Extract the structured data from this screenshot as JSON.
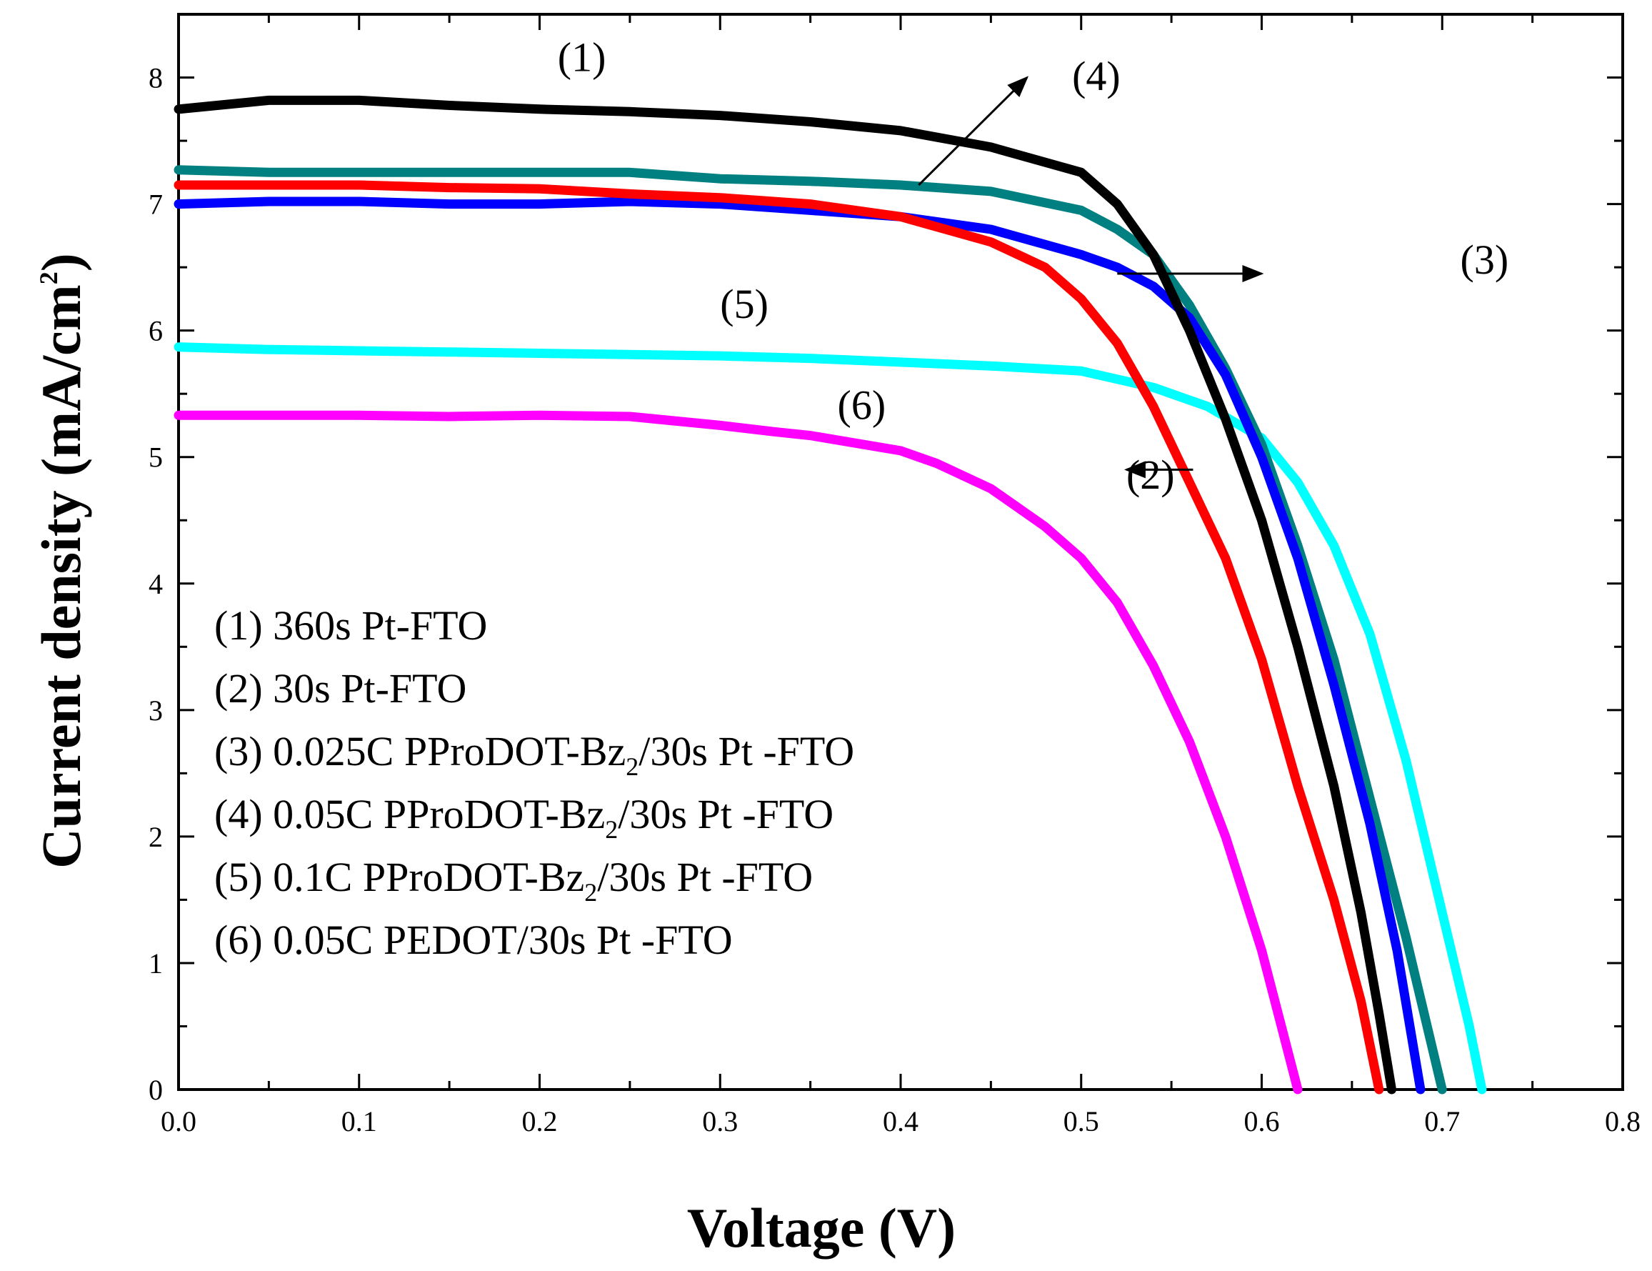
{
  "chart_data": {
    "type": "line",
    "xlabel": "Voltage (V)",
    "ylabel": {
      "main": "Current density (mA/cm",
      "sup": "2",
      "close": ")"
    },
    "xlim": [
      0.0,
      0.8
    ],
    "ylim": [
      0,
      8.5
    ],
    "x_ticks": [
      "0.0",
      "0.1",
      "0.2",
      "0.3",
      "0.4",
      "0.5",
      "0.6",
      "0.7",
      "0.8"
    ],
    "y_ticks": [
      "0",
      "1",
      "2",
      "3",
      "4",
      "5",
      "6",
      "7",
      "8"
    ],
    "grid": false,
    "legend_position": "bottom-left",
    "series": [
      {
        "id": "s1",
        "color": "#000000",
        "legend": {
          "pre": "(1) 360s Pt-FTO"
        },
        "points": [
          [
            0.0,
            7.75
          ],
          [
            0.05,
            7.82
          ],
          [
            0.1,
            7.82
          ],
          [
            0.15,
            7.78
          ],
          [
            0.2,
            7.75
          ],
          [
            0.25,
            7.73
          ],
          [
            0.3,
            7.7
          ],
          [
            0.35,
            7.65
          ],
          [
            0.4,
            7.58
          ],
          [
            0.45,
            7.45
          ],
          [
            0.5,
            7.25
          ],
          [
            0.52,
            7.0
          ],
          [
            0.54,
            6.6
          ],
          [
            0.56,
            6.0
          ],
          [
            0.58,
            5.3
          ],
          [
            0.6,
            4.5
          ],
          [
            0.62,
            3.5
          ],
          [
            0.64,
            2.4
          ],
          [
            0.655,
            1.4
          ],
          [
            0.665,
            0.6
          ],
          [
            0.672,
            0.0
          ]
        ]
      },
      {
        "id": "s2",
        "color": "#ff0000",
        "legend": {
          "pre": "(2) 30s Pt-FTO"
        },
        "points": [
          [
            0.0,
            7.15
          ],
          [
            0.05,
            7.15
          ],
          [
            0.1,
            7.15
          ],
          [
            0.15,
            7.13
          ],
          [
            0.2,
            7.12
          ],
          [
            0.25,
            7.08
          ],
          [
            0.3,
            7.05
          ],
          [
            0.35,
            7.0
          ],
          [
            0.4,
            6.9
          ],
          [
            0.45,
            6.7
          ],
          [
            0.48,
            6.5
          ],
          [
            0.5,
            6.25
          ],
          [
            0.52,
            5.9
          ],
          [
            0.54,
            5.4
          ],
          [
            0.56,
            4.8
          ],
          [
            0.58,
            4.2
          ],
          [
            0.6,
            3.4
          ],
          [
            0.62,
            2.4
          ],
          [
            0.64,
            1.5
          ],
          [
            0.655,
            0.7
          ],
          [
            0.665,
            0.0
          ]
        ]
      },
      {
        "id": "s3",
        "color": "#0000ff",
        "legend": {
          "pre": "(3) 0.025C PProDOT-Bz",
          "sub": "2",
          "post": "/30s Pt -FTO"
        },
        "points": [
          [
            0.0,
            7.0
          ],
          [
            0.05,
            7.02
          ],
          [
            0.1,
            7.02
          ],
          [
            0.15,
            7.0
          ],
          [
            0.2,
            7.0
          ],
          [
            0.25,
            7.02
          ],
          [
            0.3,
            7.0
          ],
          [
            0.35,
            6.95
          ],
          [
            0.4,
            6.9
          ],
          [
            0.45,
            6.8
          ],
          [
            0.5,
            6.6
          ],
          [
            0.52,
            6.5
          ],
          [
            0.54,
            6.35
          ],
          [
            0.56,
            6.1
          ],
          [
            0.58,
            5.65
          ],
          [
            0.6,
            5.0
          ],
          [
            0.62,
            4.2
          ],
          [
            0.64,
            3.2
          ],
          [
            0.66,
            2.1
          ],
          [
            0.675,
            1.1
          ],
          [
            0.688,
            0.0
          ]
        ]
      },
      {
        "id": "s4",
        "color": "#008080",
        "legend": {
          "pre": "(4) 0.05C PProDOT-Bz",
          "sub": "2",
          "post": "/30s Pt -FTO"
        },
        "points": [
          [
            0.0,
            7.27
          ],
          [
            0.05,
            7.25
          ],
          [
            0.1,
            7.25
          ],
          [
            0.15,
            7.25
          ],
          [
            0.2,
            7.25
          ],
          [
            0.25,
            7.25
          ],
          [
            0.3,
            7.2
          ],
          [
            0.35,
            7.18
          ],
          [
            0.4,
            7.15
          ],
          [
            0.45,
            7.1
          ],
          [
            0.5,
            6.95
          ],
          [
            0.52,
            6.8
          ],
          [
            0.54,
            6.6
          ],
          [
            0.56,
            6.2
          ],
          [
            0.58,
            5.7
          ],
          [
            0.6,
            5.1
          ],
          [
            0.62,
            4.3
          ],
          [
            0.64,
            3.4
          ],
          [
            0.66,
            2.3
          ],
          [
            0.68,
            1.2
          ],
          [
            0.7,
            0.0
          ]
        ]
      },
      {
        "id": "s5",
        "color": "#00ffff",
        "legend": {
          "pre": "(5) 0.1C PProDOT-Bz",
          "sub": "2",
          "post": "/30s Pt -FTO"
        },
        "points": [
          [
            0.0,
            5.87
          ],
          [
            0.05,
            5.85
          ],
          [
            0.1,
            5.84
          ],
          [
            0.15,
            5.83
          ],
          [
            0.2,
            5.82
          ],
          [
            0.25,
            5.81
          ],
          [
            0.3,
            5.8
          ],
          [
            0.35,
            5.78
          ],
          [
            0.4,
            5.75
          ],
          [
            0.45,
            5.72
          ],
          [
            0.5,
            5.68
          ],
          [
            0.54,
            5.55
          ],
          [
            0.57,
            5.4
          ],
          [
            0.6,
            5.15
          ],
          [
            0.62,
            4.8
          ],
          [
            0.64,
            4.3
          ],
          [
            0.66,
            3.6
          ],
          [
            0.68,
            2.6
          ],
          [
            0.7,
            1.4
          ],
          [
            0.715,
            0.5
          ],
          [
            0.722,
            0.0
          ]
        ]
      },
      {
        "id": "s6",
        "color": "#ff00ff",
        "legend": {
          "pre": "(6) 0.05C PEDOT/30s Pt -FTO"
        },
        "points": [
          [
            0.0,
            5.33
          ],
          [
            0.05,
            5.33
          ],
          [
            0.1,
            5.33
          ],
          [
            0.15,
            5.32
          ],
          [
            0.2,
            5.33
          ],
          [
            0.25,
            5.32
          ],
          [
            0.3,
            5.25
          ],
          [
            0.33,
            5.2
          ],
          [
            0.35,
            5.17
          ],
          [
            0.4,
            5.05
          ],
          [
            0.42,
            4.95
          ],
          [
            0.45,
            4.75
          ],
          [
            0.48,
            4.45
          ],
          [
            0.5,
            4.2
          ],
          [
            0.52,
            3.85
          ],
          [
            0.54,
            3.35
          ],
          [
            0.56,
            2.75
          ],
          [
            0.58,
            2.0
          ],
          [
            0.6,
            1.1
          ],
          [
            0.61,
            0.55
          ],
          [
            0.62,
            0.0
          ]
        ]
      }
    ],
    "curve_labels": [
      {
        "series": "s1",
        "text": "(1)",
        "x": 0.21,
        "y": 8.05,
        "arrow": false
      },
      {
        "series": "s4",
        "text": "(4)",
        "x": 0.495,
        "y": 7.9,
        "arrow": true,
        "arrow_from": [
          0.41,
          7.15
        ],
        "arrow_to": [
          0.47,
          8.0
        ]
      },
      {
        "series": "s3",
        "text": "(3)",
        "x": 0.71,
        "y": 6.45,
        "arrow": true,
        "arrow_from": [
          0.52,
          6.45
        ],
        "arrow_to": [
          0.6,
          6.45
        ]
      },
      {
        "series": "s5",
        "text": "(5)",
        "x": 0.3,
        "y": 6.1,
        "arrow": false
      },
      {
        "series": "s6",
        "text": "(6)",
        "x": 0.365,
        "y": 5.3,
        "arrow": false
      },
      {
        "series": "s2",
        "text": "(2)",
        "x": 0.525,
        "y": 4.75,
        "arrow": true,
        "arrow_from": [
          0.562,
          4.9
        ],
        "arrow_to": [
          0.525,
          4.9
        ]
      }
    ]
  }
}
